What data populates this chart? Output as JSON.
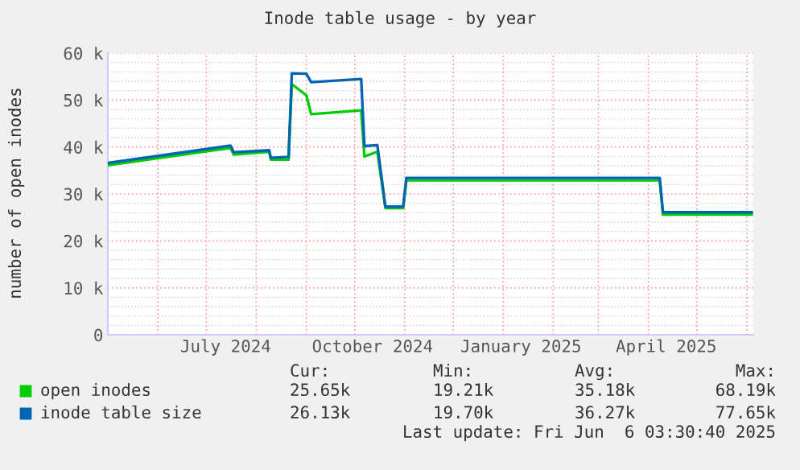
{
  "chart_data": {
    "type": "line",
    "title": "Inode table usage - by year",
    "ylabel": "number of open inodes",
    "x": [
      "2024-05-01",
      "2024-07-16",
      "2024-07-18",
      "2024-08-09",
      "2024-08-10",
      "2024-08-21",
      "2024-08-23",
      "2024-09-01",
      "2024-09-04",
      "2024-10-05",
      "2024-10-07",
      "2024-10-15",
      "2024-10-20",
      "2024-10-31",
      "2024-11-02",
      "2025-04-08",
      "2025-04-10",
      "2025-06-04"
    ],
    "series": [
      {
        "name": "open inodes",
        "color": "#00cc00",
        "values": [
          36100,
          39800,
          38400,
          39000,
          37300,
          37300,
          53400,
          51000,
          47000,
          47800,
          38000,
          39000,
          27000,
          27000,
          32900,
          32900,
          25600,
          25600
        ]
      },
      {
        "name": "inode table size",
        "color": "#0066b3",
        "values": [
          36600,
          40300,
          38900,
          39300,
          37700,
          37900,
          55700,
          55600,
          53800,
          54500,
          40200,
          40400,
          27300,
          27300,
          33400,
          33400,
          26100,
          26100
        ]
      }
    ],
    "xlim": [
      "2024-05-01",
      "2025-06-05"
    ],
    "xticks": [
      {
        "value": "2024-06-01",
        "label": null
      },
      {
        "value": "2024-07-01",
        "label": null
      },
      {
        "value": "2024-07-13",
        "label": "July 2024"
      },
      {
        "value": "2024-08-01",
        "label": null
      },
      {
        "value": "2024-09-01",
        "label": null
      },
      {
        "value": "2024-10-01",
        "label": null
      },
      {
        "value": "2024-10-12",
        "label": "October 2024"
      },
      {
        "value": "2024-11-01",
        "label": null
      },
      {
        "value": "2024-12-01",
        "label": null
      },
      {
        "value": "2025-01-01",
        "label": null
      },
      {
        "value": "2025-01-12",
        "label": "January 2025"
      },
      {
        "value": "2025-02-01",
        "label": null
      },
      {
        "value": "2025-03-01",
        "label": null
      },
      {
        "value": "2025-04-01",
        "label": null
      },
      {
        "value": "2025-04-12",
        "label": "April 2025"
      },
      {
        "value": "2025-05-01",
        "label": null
      },
      {
        "value": "2025-06-01",
        "label": null
      }
    ],
    "ylim": [
      0,
      60000
    ],
    "yticks": [
      0,
      {
        "value": 10000,
        "label": "10 k"
      },
      {
        "value": 20000,
        "label": "20 k"
      },
      {
        "value": 30000,
        "label": "30 k"
      },
      {
        "value": 40000,
        "label": "40 k"
      },
      {
        "value": 50000,
        "label": "50 k"
      },
      {
        "value": 60000,
        "label": "60 k"
      }
    ],
    "grid": true,
    "legend": "bottom",
    "annotations": [
      "Cur:",
      "Min:",
      "Avg:",
      "Max:",
      "25.65k",
      "19.21k",
      "35.18k",
      "68.19k",
      "26.13k",
      "19.70k",
      "36.27k",
      "77.65k",
      "Last update: Fri Jun  6 03:30:40 2025"
    ]
  }
}
